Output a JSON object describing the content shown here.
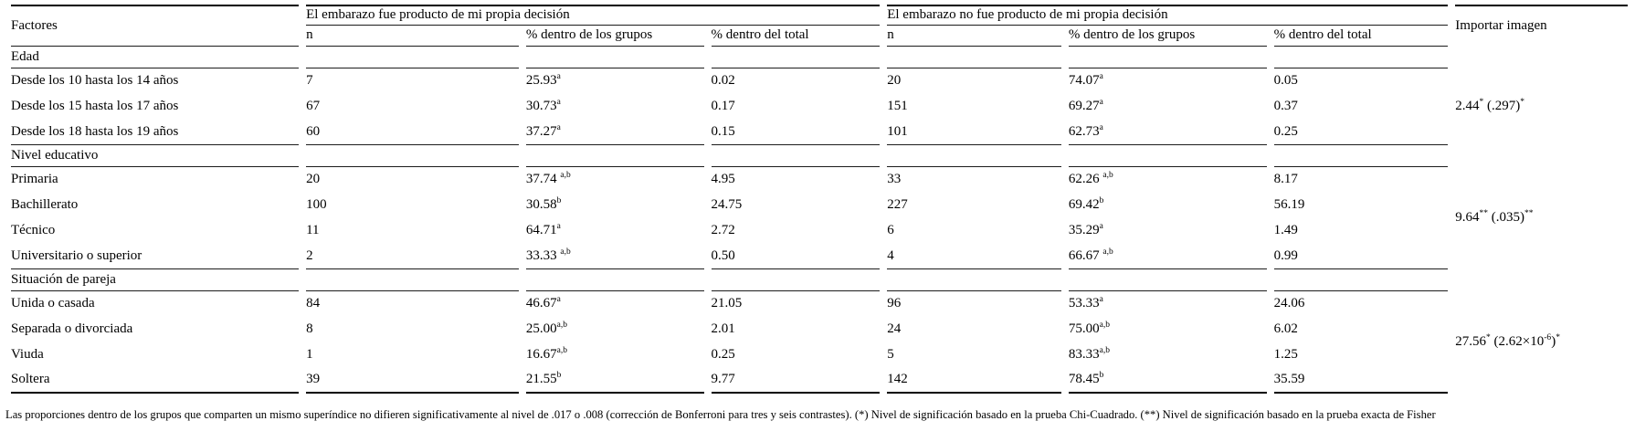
{
  "colors": {
    "text": "#000000",
    "border": "#000000",
    "background": "#ffffff"
  },
  "table": {
    "header": {
      "factores": "Factores",
      "group1": "El embarazo fue producto de mi propia decisión",
      "group2": "El embarazo no fue producto de mi propia decisión",
      "subcols": [
        "n",
        "% dentro de los grupos",
        "% dentro del total"
      ],
      "importar": "Importar imagen"
    },
    "sections": [
      {
        "id": "edad",
        "label": "Edad",
        "stat": [
          {
            "t": "2.44"
          },
          {
            "s": "*"
          },
          {
            "t": " (.297)"
          },
          {
            "s": "*"
          }
        ],
        "rows": [
          {
            "label": "Desde los 10 hasta los 14 años",
            "cells": [
              [
                {
                  "t": "7"
                }
              ],
              [
                {
                  "t": "25.93"
                },
                {
                  "s": "a"
                }
              ],
              [
                {
                  "t": "0.02"
                }
              ],
              [
                {
                  "t": "20"
                }
              ],
              [
                {
                  "t": "74.07"
                },
                {
                  "s": "a"
                }
              ],
              [
                {
                  "t": "0.05"
                }
              ]
            ]
          },
          {
            "label": "Desde los 15 hasta los 17 años",
            "cells": [
              [
                {
                  "t": "67"
                }
              ],
              [
                {
                  "t": "30.73"
                },
                {
                  "s": "a"
                }
              ],
              [
                {
                  "t": "0.17"
                }
              ],
              [
                {
                  "t": "151"
                }
              ],
              [
                {
                  "t": "69.27"
                },
                {
                  "s": "a"
                }
              ],
              [
                {
                  "t": "0.37"
                }
              ]
            ]
          },
          {
            "label": "Desde los 18 hasta los 19 años",
            "cells": [
              [
                {
                  "t": "60"
                }
              ],
              [
                {
                  "t": "37.27"
                },
                {
                  "s": "a"
                }
              ],
              [
                {
                  "t": "0.15"
                }
              ],
              [
                {
                  "t": "101"
                }
              ],
              [
                {
                  "t": "62.73"
                },
                {
                  "s": "a"
                }
              ],
              [
                {
                  "t": "0.25"
                }
              ]
            ]
          }
        ]
      },
      {
        "id": "nivel-educativo",
        "label": "Nivel educativo",
        "stat": [
          {
            "t": "9.64"
          },
          {
            "s": "**"
          },
          {
            "t": " (.035)"
          },
          {
            "s": "**"
          }
        ],
        "rows": [
          {
            "label": "Primaria",
            "cells": [
              [
                {
                  "t": "20"
                }
              ],
              [
                {
                  "t": "37.74 "
                },
                {
                  "s": "a,b"
                }
              ],
              [
                {
                  "t": "4.95"
                }
              ],
              [
                {
                  "t": "33"
                }
              ],
              [
                {
                  "t": "62.26 "
                },
                {
                  "s": "a,b"
                }
              ],
              [
                {
                  "t": "8.17"
                }
              ]
            ]
          },
          {
            "label": "Bachillerato",
            "cells": [
              [
                {
                  "t": "100"
                }
              ],
              [
                {
                  "t": "30.58"
                },
                {
                  "s": "b"
                }
              ],
              [
                {
                  "t": "24.75"
                }
              ],
              [
                {
                  "t": "227"
                }
              ],
              [
                {
                  "t": "69.42"
                },
                {
                  "s": "b"
                }
              ],
              [
                {
                  "t": "56.19"
                }
              ]
            ]
          },
          {
            "label": "Técnico",
            "cells": [
              [
                {
                  "t": "11"
                }
              ],
              [
                {
                  "t": "64.71"
                },
                {
                  "s": "a"
                }
              ],
              [
                {
                  "t": "2.72"
                }
              ],
              [
                {
                  "t": "6"
                }
              ],
              [
                {
                  "t": "35.29"
                },
                {
                  "s": "a"
                }
              ],
              [
                {
                  "t": "1.49"
                }
              ]
            ]
          },
          {
            "label": "Universitario o superior",
            "cells": [
              [
                {
                  "t": "2"
                }
              ],
              [
                {
                  "t": "33.33 "
                },
                {
                  "s": "a,b"
                }
              ],
              [
                {
                  "t": "0.50"
                }
              ],
              [
                {
                  "t": "4"
                }
              ],
              [
                {
                  "t": "66.67 "
                },
                {
                  "s": "a,b"
                }
              ],
              [
                {
                  "t": "0.99"
                }
              ]
            ]
          }
        ]
      },
      {
        "id": "situacion-de-pareja",
        "label": "Situación de pareja",
        "stat": [
          {
            "t": "27.56"
          },
          {
            "s": "*"
          },
          {
            "t": " (2.62×10"
          },
          {
            "s": "-6"
          },
          {
            "t": ")"
          },
          {
            "s": "*"
          }
        ],
        "rows": [
          {
            "label": "Unida o casada",
            "cells": [
              [
                {
                  "t": "84"
                }
              ],
              [
                {
                  "t": "46.67"
                },
                {
                  "s": "a"
                }
              ],
              [
                {
                  "t": "21.05"
                }
              ],
              [
                {
                  "t": "96"
                }
              ],
              [
                {
                  "t": "53.33"
                },
                {
                  "s": "a"
                }
              ],
              [
                {
                  "t": "24.06"
                }
              ]
            ]
          },
          {
            "label": "Separada o divorciada",
            "cells": [
              [
                {
                  "t": "8"
                }
              ],
              [
                {
                  "t": "25.00"
                },
                {
                  "s": "a,b"
                }
              ],
              [
                {
                  "t": "2.01"
                }
              ],
              [
                {
                  "t": "24"
                }
              ],
              [
                {
                  "t": "75.00"
                },
                {
                  "s": "a,b"
                }
              ],
              [
                {
                  "t": "6.02"
                }
              ]
            ]
          },
          {
            "label": "Viuda",
            "cells": [
              [
                {
                  "t": "1"
                }
              ],
              [
                {
                  "t": "16.67"
                },
                {
                  "s": "a,b"
                }
              ],
              [
                {
                  "t": "0.25"
                }
              ],
              [
                {
                  "t": "5"
                }
              ],
              [
                {
                  "t": "83.33"
                },
                {
                  "s": "a,b"
                }
              ],
              [
                {
                  "t": "1.25"
                }
              ]
            ]
          },
          {
            "label": "Soltera",
            "cells": [
              [
                {
                  "t": "39"
                }
              ],
              [
                {
                  "t": "21.55"
                },
                {
                  "s": "b"
                }
              ],
              [
                {
                  "t": "9.77"
                }
              ],
              [
                {
                  "t": "142"
                }
              ],
              [
                {
                  "t": "78.45"
                },
                {
                  "s": "b"
                }
              ],
              [
                {
                  "t": "35.59"
                }
              ]
            ]
          }
        ]
      }
    ],
    "footnote": "Las proporciones dentro de los grupos que comparten un mismo superíndice no difieren significativamente al nivel de .017 o .008 (corrección de Bonferroni para tres y seis contrastes). (*) Nivel de significación basado en la prueba Chi-Cuadrado. (**) Nivel de significación basado en la prueba exacta de Fisher"
  }
}
